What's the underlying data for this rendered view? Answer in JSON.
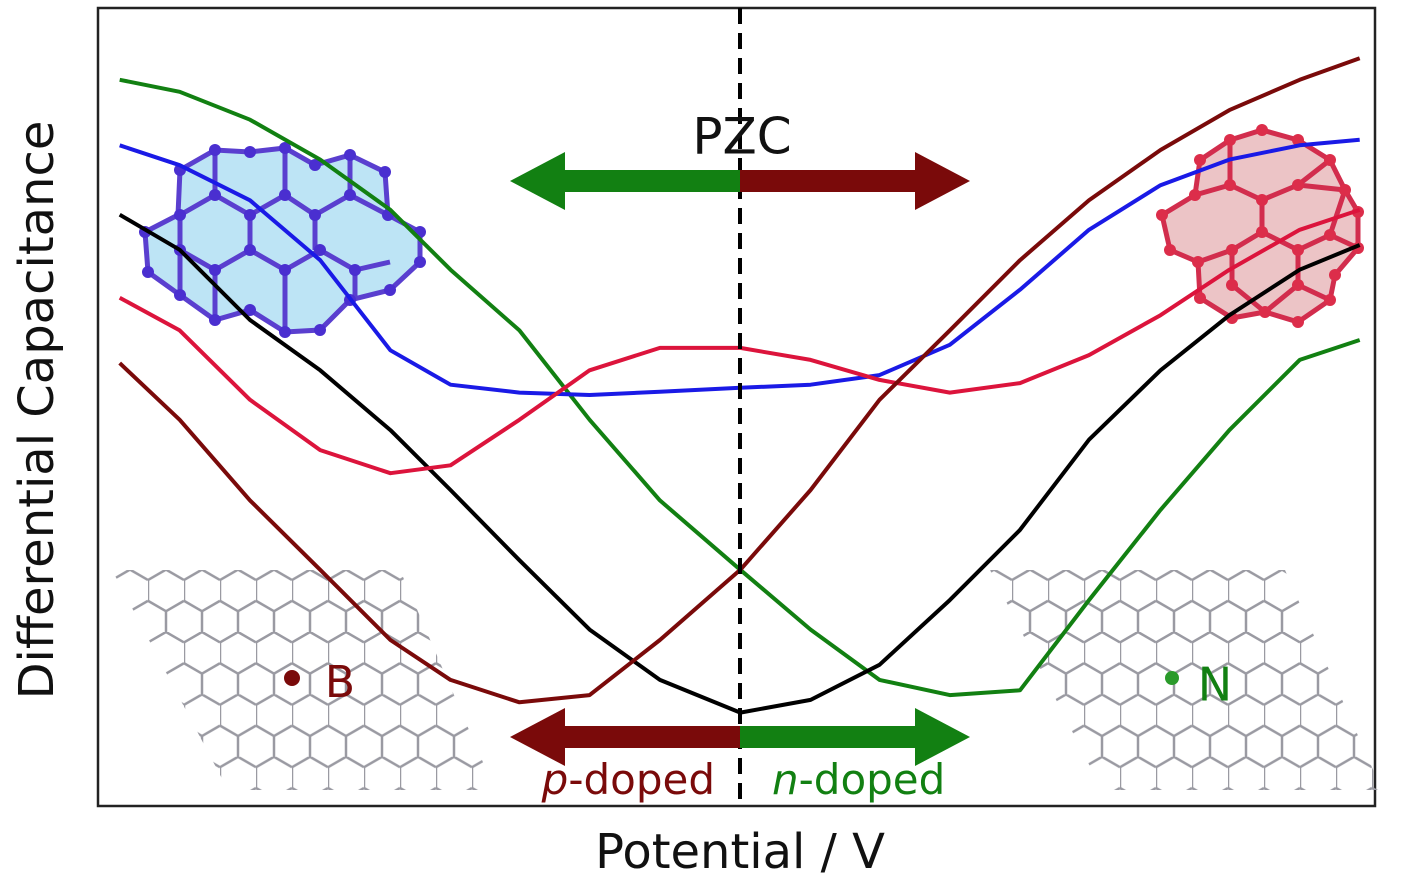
{
  "chart_data": {
    "type": "line",
    "x": [
      1.7,
      6.4,
      11.9,
      17.4,
      22.9,
      27.6,
      33.0,
      38.5,
      44.0,
      50.3,
      55.8,
      61.2,
      66.7,
      72.2,
      77.6,
      83.2,
      88.6,
      94.1,
      98.8
    ],
    "xlim": [
      0,
      100
    ],
    "ylim": [
      0,
      100
    ],
    "x_label": "Potential / V",
    "y_label": "Differential Capacitance",
    "series": [
      {
        "color": "#128012",
        "values": [
          91.0,
          89.5,
          86.0,
          81.0,
          74.7,
          67.2,
          59.6,
          48.4,
          38.3,
          29.6,
          22.1,
          15.8,
          13.9,
          14.5,
          25.8,
          37.1,
          47.1,
          55.9,
          58.4
        ]
      },
      {
        "color": "#1a1ae6",
        "values": [
          82.8,
          80.3,
          75.9,
          68.4,
          57.1,
          52.8,
          51.8,
          51.5,
          51.9,
          52.4,
          52.8,
          54.0,
          57.8,
          64.7,
          72.2,
          77.8,
          81.0,
          82.8,
          83.5
        ]
      },
      {
        "color": "#000000",
        "values": [
          74.1,
          69.7,
          60.9,
          54.6,
          47.1,
          39.6,
          30.8,
          22.1,
          15.8,
          11.7,
          13.3,
          17.7,
          25.8,
          34.6,
          45.9,
          54.6,
          61.5,
          67.2,
          70.3
        ]
      },
      {
        "color": "#dc143c",
        "values": [
          63.7,
          59.6,
          50.9,
          44.6,
          41.7,
          42.7,
          48.4,
          54.6,
          57.4,
          57.4,
          55.9,
          53.4,
          51.8,
          53.0,
          56.5,
          61.5,
          67.2,
          72.2,
          74.7
        ]
      },
      {
        "color": "#7a0a0a",
        "values": [
          55.5,
          48.4,
          38.3,
          29.6,
          20.8,
          15.8,
          13.0,
          13.9,
          20.8,
          29.6,
          39.6,
          50.9,
          59.6,
          68.4,
          75.9,
          82.2,
          87.2,
          91.0,
          93.7
        ]
      }
    ],
    "annotations": {
      "pzc": "PZC",
      "p_doped": {
        "italic": "p",
        "rest": "-doped"
      },
      "n_doped": {
        "italic": "n",
        "rest": "-doped"
      },
      "boron": "B",
      "nitrogen": "N"
    }
  }
}
